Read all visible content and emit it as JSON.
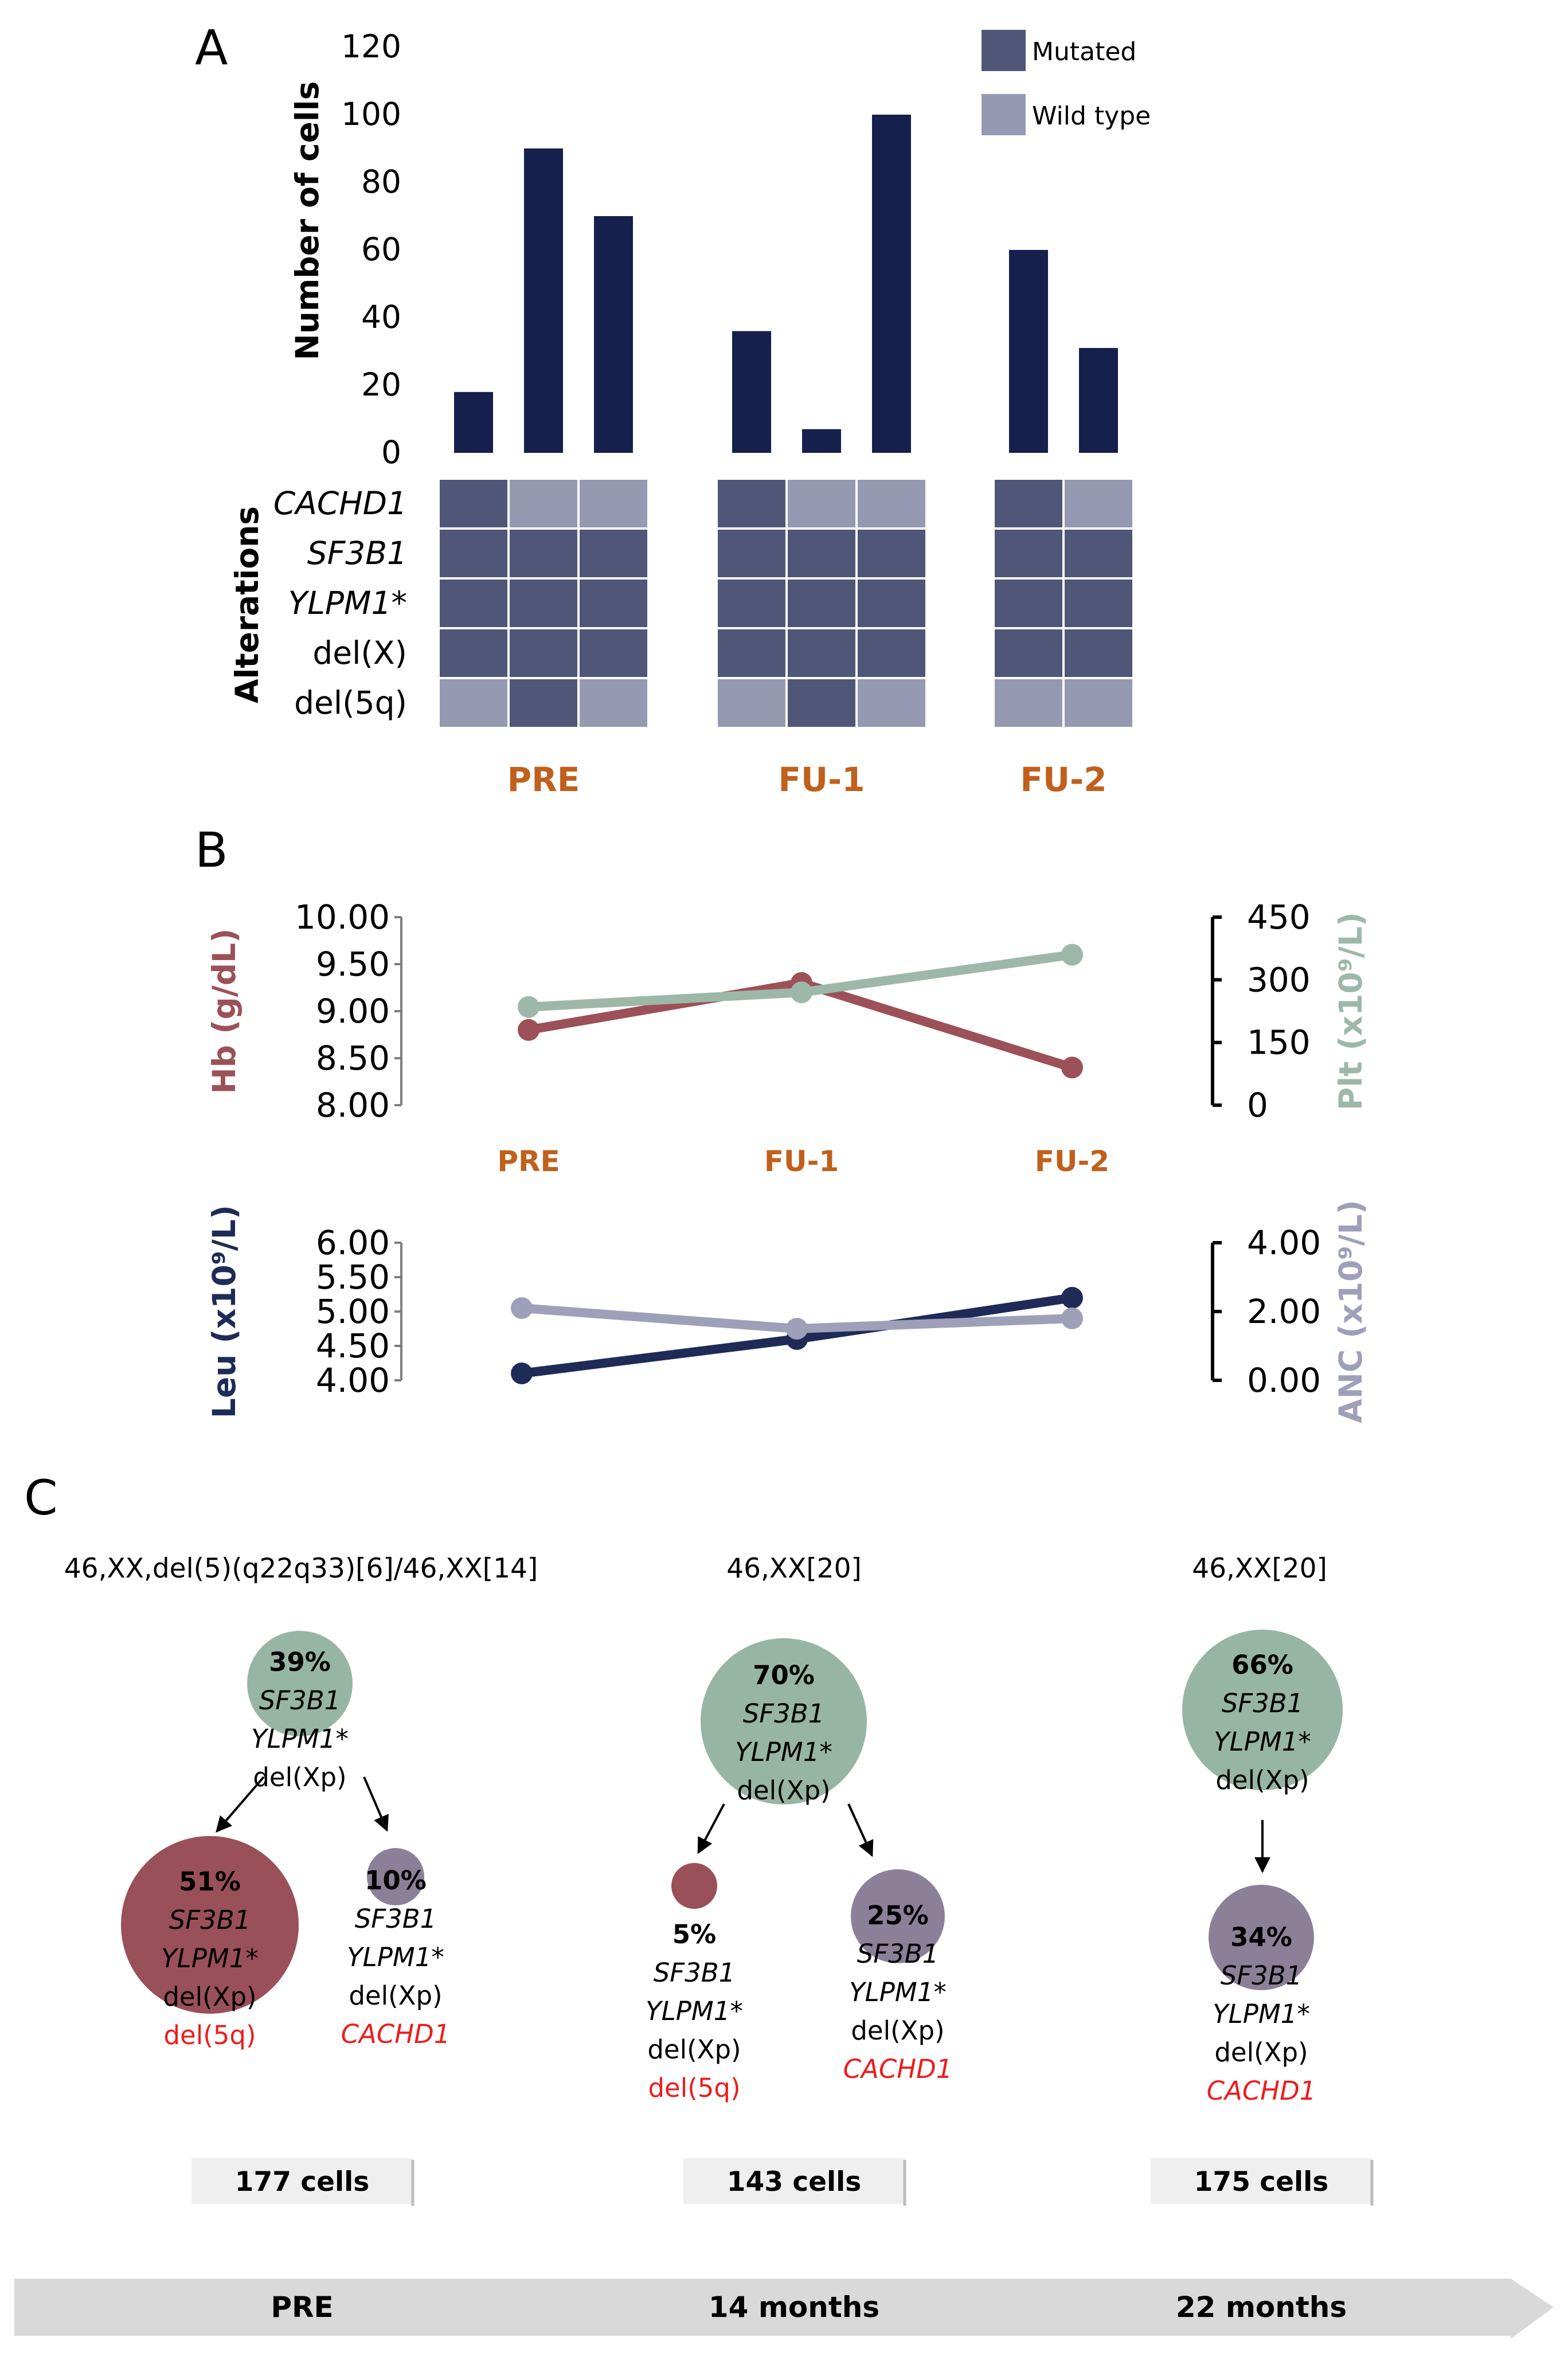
{
  "colors": {
    "bar": "#15204d",
    "mutated": "#4f5677",
    "wild_type": "#9599b1",
    "group_label": "#c0601c",
    "hb": "#9c5058",
    "plt": "#9db8a8",
    "leu": "#1f2b57",
    "anc": "#9ea0b9",
    "clone_green": "#97b5a4",
    "clone_red": "#9a5058",
    "clone_purple": "#8c8099",
    "highlight": "#ee1c1c",
    "cells_box": "#efefef",
    "timeline": "#d9d9d9"
  },
  "panels": {
    "a": "A",
    "b": "B",
    "c": "C"
  },
  "chart_data": [
    {
      "id": "A",
      "type": "bar",
      "ylabel": "Number of cells",
      "ylim": [
        0,
        120
      ],
      "yticks": [
        0,
        20,
        40,
        60,
        80,
        100,
        120
      ],
      "legend": [
        {
          "name": "Mutated",
          "color_key": "mutated"
        },
        {
          "name": "Wild type",
          "color_key": "wild_type"
        }
      ],
      "legend_position": "top-right",
      "groups": [
        {
          "label": "PRE",
          "values": [
            18,
            90,
            70
          ]
        },
        {
          "label": "FU-1",
          "values": [
            36,
            7,
            100
          ]
        },
        {
          "label": "FU-2",
          "values": [
            60,
            31
          ]
        }
      ],
      "matrix": {
        "axis_label": "Alterations",
        "rows": [
          "CACHD1",
          "SF3B1",
          "YLPM1*",
          "del(X)",
          "del(5q)"
        ],
        "italic_rows": [
          true,
          true,
          true,
          false,
          false
        ],
        "states": [
          [
            [
              "M",
              "W",
              "W"
            ],
            [
              "M",
              "W",
              "W"
            ],
            [
              "M",
              "W"
            ]
          ],
          [
            [
              "M",
              "M",
              "M"
            ],
            [
              "M",
              "M",
              "M"
            ],
            [
              "M",
              "M"
            ]
          ],
          [
            [
              "M",
              "M",
              "M"
            ],
            [
              "M",
              "M",
              "M"
            ],
            [
              "M",
              "M"
            ]
          ],
          [
            [
              "M",
              "M",
              "M"
            ],
            [
              "M",
              "M",
              "M"
            ],
            [
              "M",
              "M"
            ]
          ],
          [
            [
              "W",
              "M",
              "W"
            ],
            [
              "W",
              "M",
              "W"
            ],
            [
              "W",
              "W"
            ]
          ]
        ]
      }
    },
    {
      "id": "B-top",
      "type": "line",
      "categories": [
        "PRE",
        "FU-1",
        "FU-2"
      ],
      "left_axis": {
        "label": "Hb (g/dL)",
        "ylim": [
          8,
          10
        ],
        "ticks": [
          "8.00",
          "8.50",
          "9.00",
          "9.50",
          "10.00"
        ]
      },
      "right_axis": {
        "label": "Plt (x10⁹/L)",
        "ylim": [
          0,
          450
        ],
        "ticks": [
          "0",
          "150",
          "300",
          "450"
        ]
      },
      "series": [
        {
          "name": "Hb (g/dL)",
          "axis": "left",
          "color_key": "hb",
          "values": [
            8.8,
            9.3,
            8.4
          ]
        },
        {
          "name": "Plt (x10⁹/L)",
          "axis": "right",
          "color_key": "plt",
          "values": [
            235,
            270,
            360
          ]
        }
      ]
    },
    {
      "id": "B-bottom",
      "type": "line",
      "categories": [
        "PRE",
        "FU-1",
        "FU-2"
      ],
      "left_axis": {
        "label": "Leu (x10⁹/L)",
        "ylim": [
          4,
          6
        ],
        "ticks": [
          "4.00",
          "4.50",
          "5.00",
          "5.50",
          "6.00"
        ]
      },
      "right_axis": {
        "label": "ANC (x10⁹/L)",
        "ylim": [
          0,
          4
        ],
        "ticks": [
          "0.00",
          "2.00",
          "4.00"
        ]
      },
      "series": [
        {
          "name": "Leu (x10⁹/L)",
          "axis": "left",
          "color_key": "leu",
          "values": [
            4.1,
            4.6,
            5.2
          ]
        },
        {
          "name": "ANC (x10⁹/L)",
          "axis": "right",
          "color_key": "anc",
          "values": [
            2.1,
            1.5,
            1.8
          ]
        }
      ]
    }
  ],
  "clonal_evolution": {
    "karyotypes": [
      "46,XX,del(5)(q22q33)[6]/46,XX[14]",
      "46,XX[20]",
      "46,XX[20]"
    ],
    "cells": [
      "177 cells",
      "143 cells",
      "175 cells"
    ],
    "timeline": [
      "PRE",
      "14 months",
      "22 months"
    ],
    "clones": [
      {
        "timepoint": 0,
        "color_key": "clone_green",
        "pct": "39%",
        "fraction": 0.39,
        "lines": [
          "SF3B1",
          "YLPM1*",
          "del(Xp)"
        ],
        "italic": [
          true,
          true,
          false
        ],
        "red": [
          false,
          false,
          false
        ]
      },
      {
        "timepoint": 0,
        "color_key": "clone_red",
        "pct": "51%",
        "fraction": 0.51,
        "lines": [
          "SF3B1",
          "YLPM1*",
          "del(Xp)",
          "del(5q)"
        ],
        "italic": [
          true,
          true,
          false,
          false
        ],
        "red": [
          false,
          false,
          false,
          true
        ]
      },
      {
        "timepoint": 0,
        "color_key": "clone_purple",
        "pct": "10%",
        "fraction": 0.1,
        "lines": [
          "SF3B1",
          "YLPM1*",
          "del(Xp)",
          "CACHD1"
        ],
        "italic": [
          true,
          true,
          false,
          true
        ],
        "red": [
          false,
          false,
          false,
          true
        ]
      },
      {
        "timepoint": 1,
        "color_key": "clone_green",
        "pct": "70%",
        "fraction": 0.7,
        "lines": [
          "SF3B1",
          "YLPM1*",
          "del(Xp)"
        ],
        "italic": [
          true,
          true,
          false
        ],
        "red": [
          false,
          false,
          false
        ]
      },
      {
        "timepoint": 1,
        "color_key": "clone_red",
        "pct": "5%",
        "fraction": 0.05,
        "lines": [
          "SF3B1",
          "YLPM1*",
          "del(Xp)",
          "del(5q)"
        ],
        "italic": [
          true,
          true,
          false,
          false
        ],
        "red": [
          false,
          false,
          false,
          true
        ]
      },
      {
        "timepoint": 1,
        "color_key": "clone_purple",
        "pct": "25%",
        "fraction": 0.25,
        "lines": [
          "SF3B1",
          "YLPM1*",
          "del(Xp)",
          "CACHD1"
        ],
        "italic": [
          true,
          true,
          false,
          true
        ],
        "red": [
          false,
          false,
          false,
          true
        ]
      },
      {
        "timepoint": 2,
        "color_key": "clone_green",
        "pct": "66%",
        "fraction": 0.66,
        "lines": [
          "SF3B1",
          "YLPM1*",
          "del(Xp)"
        ],
        "italic": [
          true,
          true,
          false
        ],
        "red": [
          false,
          false,
          false
        ]
      },
      {
        "timepoint": 2,
        "color_key": "clone_purple",
        "pct": "34%",
        "fraction": 0.34,
        "lines": [
          "SF3B1",
          "YLPM1*",
          "del(Xp)",
          "CACHD1"
        ],
        "italic": [
          true,
          true,
          false,
          true
        ],
        "red": [
          false,
          false,
          false,
          true
        ]
      }
    ]
  }
}
